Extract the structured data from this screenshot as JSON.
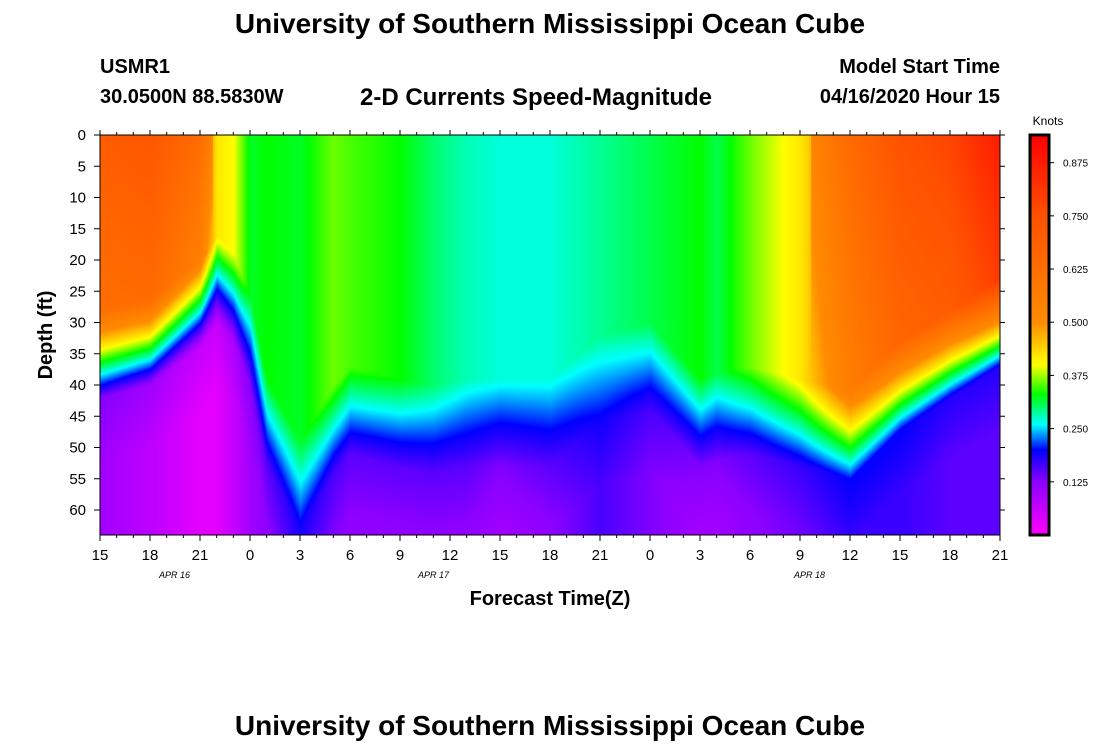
{
  "header": {
    "title": "University of Southern Mississippi Ocean Cube",
    "station_id": "USMR1",
    "coords": "30.0500N 88.5830W",
    "plot_title": "2-D Currents Speed-Magnitude",
    "start_label": "Model Start Time",
    "start_value": "04/16/2020 Hour 15"
  },
  "footer": {
    "title": "University of Southern Mississippi Ocean Cube"
  },
  "colorscale": [
    {
      "v": 0.0,
      "c": "#ff00ff"
    },
    {
      "v": 0.125,
      "c": "#8a00ff"
    },
    {
      "v": 0.2,
      "c": "#0000ff"
    },
    {
      "v": 0.26,
      "c": "#00ffff"
    },
    {
      "v": 0.33,
      "c": "#00ff00"
    },
    {
      "v": 0.4,
      "c": "#ffff00"
    },
    {
      "v": 0.5,
      "c": "#ff8c00"
    },
    {
      "v": 0.75,
      "c": "#ff5000"
    },
    {
      "v": 0.95,
      "c": "#ff0000"
    }
  ],
  "chart_data": {
    "type": "heatmap",
    "title": "2-D Currents Speed-Magnitude",
    "xlabel": "Forecast Time(Z)",
    "ylabel": "Depth (ft)",
    "x_ticks": [
      "15",
      "18",
      "21",
      "0",
      "3",
      "6",
      "9",
      "12",
      "15",
      "18",
      "21",
      "0",
      "3",
      "6",
      "9",
      "12",
      "15",
      "18",
      "21"
    ],
    "date_labels": [
      {
        "text": "APR 16",
        "x": 4.5
      },
      {
        "text": "APR 17",
        "x": 31.5
      },
      {
        "text": "APR 18",
        "x": 70.5
      }
    ],
    "xlim": [
      0,
      54
    ],
    "y_ticks": [
      "0",
      "5",
      "10",
      "15",
      "20",
      "25",
      "30",
      "35",
      "40",
      "45",
      "50",
      "55",
      "60"
    ],
    "ylim": [
      0,
      64
    ],
    "colorbar": {
      "label": "Knots",
      "ticks": [
        "0.125",
        "0.250",
        "0.375",
        "0.500",
        "0.625",
        "0.750",
        "0.875"
      ],
      "range": [
        0,
        0.94
      ]
    },
    "profile_description": "Speed in knots as a function of forecast hour (0 = Apr 16 15Z) and depth (ft); values estimated from colours",
    "time_hours": [
      0,
      3,
      6,
      7,
      8,
      9,
      10,
      12,
      14,
      15,
      18,
      20,
      22,
      24,
      27,
      30,
      33,
      36,
      37,
      39,
      42,
      45,
      48,
      51,
      54
    ],
    "upper_layer_speed": [
      0.62,
      0.64,
      0.55,
      0.42,
      0.4,
      0.32,
      0.33,
      0.32,
      0.36,
      0.35,
      0.33,
      0.3,
      0.28,
      0.27,
      0.27,
      0.29,
      0.31,
      0.33,
      0.31,
      0.36,
      0.42,
      0.56,
      0.66,
      0.7,
      0.8
    ],
    "interface_depth_ft": [
      35,
      33,
      27,
      23,
      26,
      33,
      46,
      56,
      47,
      44,
      46,
      47,
      46,
      46,
      46,
      39,
      37,
      46,
      45,
      44,
      46,
      48,
      40,
      35,
      30
    ],
    "bottom_layer_speed": [
      0.13,
      0.1,
      0.06,
      0.06,
      0.09,
      0.13,
      0.15,
      0.19,
      0.16,
      0.15,
      0.15,
      0.15,
      0.15,
      0.13,
      0.15,
      0.19,
      0.16,
      0.13,
      0.13,
      0.15,
      0.17,
      0.2,
      0.2,
      0.18,
      0.18
    ]
  }
}
